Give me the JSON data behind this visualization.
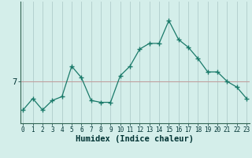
{
  "xlabel": "Humidex (Indice chaleur)",
  "ylabel": "",
  "x_values": [
    0,
    1,
    2,
    3,
    4,
    5,
    6,
    7,
    8,
    9,
    10,
    11,
    12,
    13,
    14,
    15,
    16,
    17,
    18,
    19,
    20,
    21,
    22,
    23
  ],
  "y_values": [
    5.5,
    6.1,
    5.5,
    6.0,
    6.2,
    7.8,
    7.2,
    6.0,
    5.9,
    5.9,
    7.3,
    7.8,
    8.7,
    9.0,
    9.0,
    10.2,
    9.2,
    8.8,
    8.2,
    7.5,
    7.5,
    7.0,
    6.7,
    6.1
  ],
  "line_color": "#1a7a6a",
  "marker": "+",
  "marker_size": 4,
  "bg_color": "#d4eeea",
  "grid_color": "#b0ccca",
  "axis_color": "#336655",
  "text_color": "#003333",
  "hline_y": 7,
  "hline_color": "#c0a0a0",
  "xlim": [
    -0.3,
    23.3
  ],
  "ylim": [
    4.8,
    11.2
  ],
  "yticks": [
    7
  ],
  "xticks": [
    0,
    1,
    2,
    3,
    4,
    5,
    6,
    7,
    8,
    9,
    10,
    11,
    12,
    13,
    14,
    15,
    16,
    17,
    18,
    19,
    20,
    21,
    22,
    23
  ],
  "tick_fontsize": 5.5,
  "xlabel_fontsize": 7.5
}
